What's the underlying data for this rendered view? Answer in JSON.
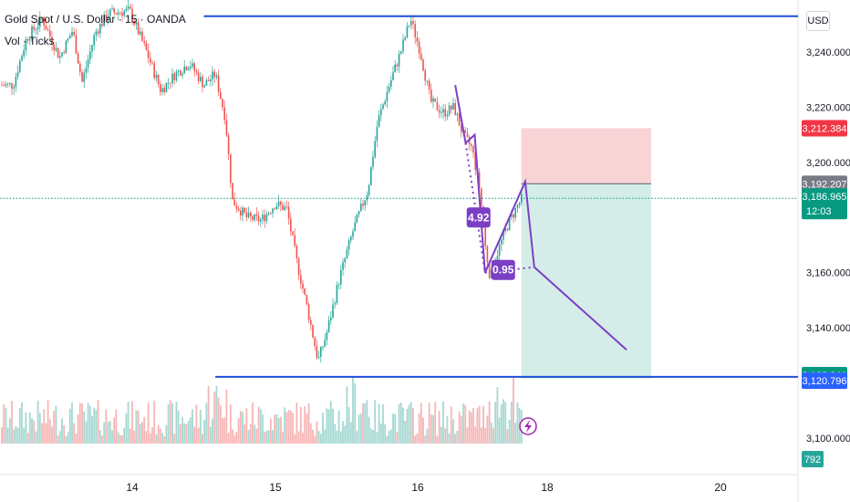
{
  "header": {
    "symbol": "Gold Spot / U.S. Dollar · 15 · OANDA",
    "indicator": "Vol · Ticks"
  },
  "currency": "USD",
  "chart_data": {
    "type": "candlestick",
    "ylim": [
      3095,
      3260
    ],
    "y_ticks": [
      {
        "value": 3240,
        "label": "3,240.000"
      },
      {
        "value": 3220,
        "label": "3,220.000"
      },
      {
        "value": 3200,
        "label": "3,200.000"
      },
      {
        "value": 3160,
        "label": "3,160.000"
      },
      {
        "value": 3140,
        "label": "3,140.000"
      },
      {
        "value": 3100,
        "label": "3,100.000"
      }
    ],
    "x_ticks": [
      {
        "label": "14",
        "day": 14.0
      },
      {
        "label": "15",
        "day": 15.0
      },
      {
        "label": "16",
        "day": 16.0
      },
      {
        "label": "18",
        "day": 17.0
      },
      {
        "label": "20",
        "day": 18.2
      }
    ],
    "price_path": [
      {
        "day": 13.1,
        "price": 3228
      },
      {
        "day": 13.2,
        "price": 3245
      },
      {
        "day": 13.32,
        "price": 3252
      },
      {
        "day": 13.45,
        "price": 3238
      },
      {
        "day": 13.55,
        "price": 3248
      },
      {
        "day": 13.62,
        "price": 3229
      },
      {
        "day": 13.72,
        "price": 3247
      },
      {
        "day": 13.82,
        "price": 3254
      },
      {
        "day": 13.98,
        "price": 3255
      },
      {
        "day": 14.1,
        "price": 3240
      },
      {
        "day": 14.2,
        "price": 3226
      },
      {
        "day": 14.3,
        "price": 3232
      },
      {
        "day": 14.4,
        "price": 3236
      },
      {
        "day": 14.5,
        "price": 3228
      },
      {
        "day": 14.58,
        "price": 3232
      },
      {
        "day": 14.65,
        "price": 3216
      },
      {
        "day": 14.7,
        "price": 3186
      },
      {
        "day": 14.8,
        "price": 3180
      },
      {
        "day": 14.9,
        "price": 3179
      },
      {
        "day": 15.0,
        "price": 3185
      },
      {
        "day": 15.08,
        "price": 3183
      },
      {
        "day": 15.15,
        "price": 3164
      },
      {
        "day": 15.22,
        "price": 3148
      },
      {
        "day": 15.3,
        "price": 3128
      },
      {
        "day": 15.36,
        "price": 3138
      },
      {
        "day": 15.45,
        "price": 3158
      },
      {
        "day": 15.55,
        "price": 3176
      },
      {
        "day": 15.65,
        "price": 3190
      },
      {
        "day": 15.72,
        "price": 3215
      },
      {
        "day": 15.8,
        "price": 3228
      },
      {
        "day": 15.88,
        "price": 3240
      },
      {
        "day": 15.95,
        "price": 3252
      },
      {
        "day": 16.02,
        "price": 3240
      },
      {
        "day": 16.1,
        "price": 3222
      },
      {
        "day": 16.2,
        "price": 3218
      },
      {
        "day": 16.28,
        "price": 3220
      },
      {
        "day": 16.35,
        "price": 3210
      },
      {
        "day": 16.42,
        "price": 3205
      },
      {
        "day": 16.48,
        "price": 3190
      },
      {
        "day": 16.52,
        "price": 3170
      },
      {
        "day": 16.56,
        "price": 3158
      },
      {
        "day": 16.62,
        "price": 3168
      },
      {
        "day": 16.7,
        "price": 3178
      },
      {
        "day": 16.78,
        "price": 3185
      },
      {
        "day": 16.82,
        "price": 3188
      }
    ],
    "volume_max": 40,
    "pattern": [
      {
        "day": 16.29,
        "price": 3228
      },
      {
        "day": 16.37,
        "price": 3207
      },
      {
        "day": 16.44,
        "price": 3210
      },
      {
        "day": 16.52,
        "price": 3160
      },
      {
        "day": 16.83,
        "price": 3193
      },
      {
        "day": 16.9,
        "price": 3162
      },
      {
        "day": 17.55,
        "price": 3132
      }
    ],
    "ratio_labels": [
      {
        "label": "4.92",
        "day": 16.47,
        "price": 3180
      },
      {
        "label": "0.95",
        "day": 16.66,
        "price": 3161
      }
    ],
    "position": {
      "start_day": 16.8,
      "end_day": 17.72,
      "entry": 3192.207,
      "stop": 3212.384,
      "target": 3121.5
    },
    "horizontal_lines": [
      {
        "price": 3253,
        "start_day": 14.5
      },
      {
        "price": 3122.2,
        "start_day": 14.58
      }
    ],
    "current_price": 3186.965,
    "price_labels": [
      {
        "price": 3212.384,
        "label": "3,212.384",
        "color": "#f23645"
      },
      {
        "price": 3192.207,
        "label": "3,192.207",
        "color": "#787b86"
      },
      {
        "price": 3186.965,
        "label": "3,186.965",
        "sub": "12:03",
        "color": "#089981"
      },
      {
        "price": 3122.841,
        "label": "3,122.841",
        "color": "#089981"
      },
      {
        "price": 3120.796,
        "label": "3,120.796",
        "color": "#2962ff"
      }
    ],
    "volume_label": "792",
    "colors": {
      "up": "#26a69a",
      "down": "#ef5350",
      "line": "#1f4fd8",
      "pattern": "#7b3fc6",
      "stop_zone": "#f7c9cc",
      "target_zone": "#c9e8e2"
    }
  }
}
